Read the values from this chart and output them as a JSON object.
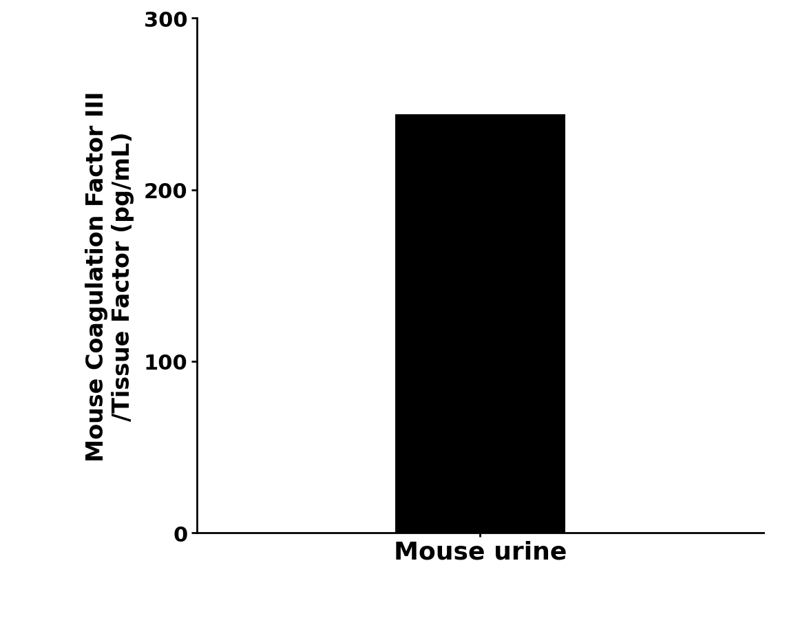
{
  "categories": [
    "Mouse urine"
  ],
  "values": [
    244.1
  ],
  "bar_color": "#000000",
  "ylabel_line1": "Mouse Coagulation Factor III",
  "ylabel_line2": "/Tissue Factor (pg/mL)",
  "ylim": [
    0,
    300
  ],
  "yticks": [
    0,
    100,
    200,
    300
  ],
  "xlim": [
    0,
    2
  ],
  "bar_x": 1,
  "bar_width": 0.6,
  "background_color": "#ffffff",
  "tick_fontsize": 22,
  "ylabel_fontsize": 24,
  "xlabel_fontsize": 26
}
